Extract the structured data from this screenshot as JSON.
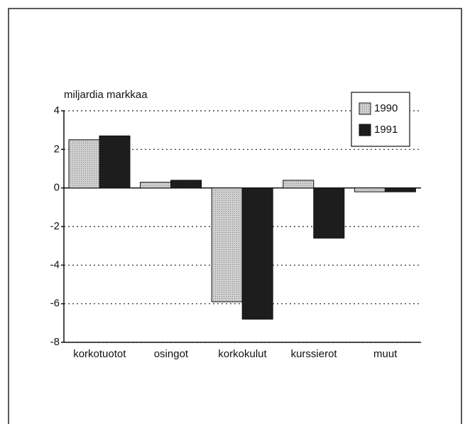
{
  "chart_data": {
    "type": "bar",
    "y_label": "miljardia markkaa",
    "categories": [
      "korkotuotot",
      "osingot",
      "korkokulut",
      "kurssierot",
      "muut"
    ],
    "series": [
      {
        "name": "1990",
        "color": "#cfcfcf",
        "values": [
          2.5,
          0.3,
          -5.9,
          0.4,
          -0.2
        ]
      },
      {
        "name": "1991",
        "color": "#1e1e1e",
        "values": [
          2.7,
          0.4,
          -6.8,
          -2.6,
          -0.2
        ]
      }
    ],
    "ylim": [
      -8,
      4
    ],
    "yticks": [
      -8,
      -6,
      -4,
      -2,
      0,
      2,
      4
    ],
    "grid": true,
    "legend": "top-right"
  }
}
